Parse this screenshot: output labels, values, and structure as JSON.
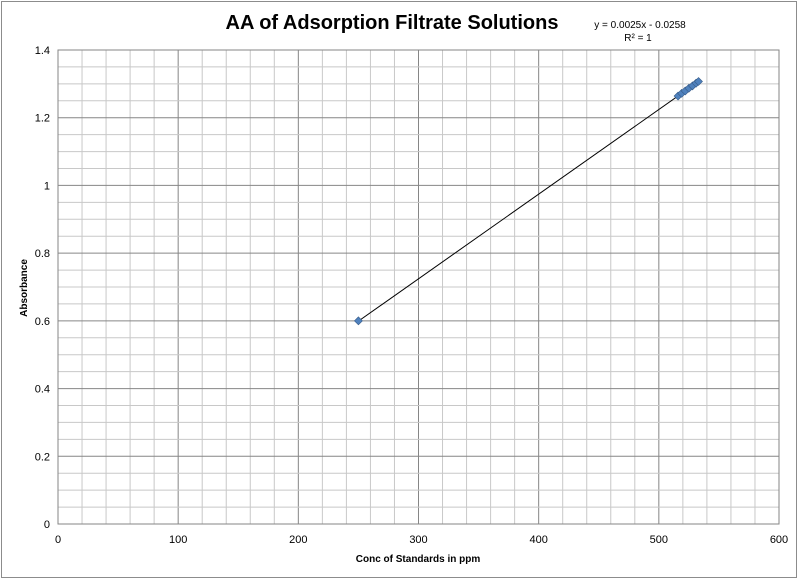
{
  "chart_data": {
    "type": "scatter",
    "title": "AA of Adsorption Filtrate Solutions",
    "xlabel": "Conc of Standards  in ppm",
    "ylabel": "Absorbance",
    "xlim": [
      0,
      600
    ],
    "ylim": [
      0,
      1.4
    ],
    "x_ticks": [
      "0",
      "100",
      "200",
      "300",
      "400",
      "500",
      "600"
    ],
    "y_ticks": [
      "0",
      "0.2",
      "0.4",
      "0.6",
      "0.8",
      "1",
      "1.2",
      "1.4"
    ],
    "grid": true,
    "series": [
      {
        "color": "#4f81bd",
        "marker": "diamond",
        "points": [
          {
            "x": 250,
            "y": 0.6
          },
          {
            "x": 516,
            "y": 1.264
          },
          {
            "x": 519,
            "y": 1.272
          },
          {
            "x": 522,
            "y": 1.279
          },
          {
            "x": 525,
            "y": 1.287
          },
          {
            "x": 528,
            "y": 1.294
          },
          {
            "x": 531,
            "y": 1.302
          },
          {
            "x": 533,
            "y": 1.307
          }
        ]
      }
    ],
    "trendline": {
      "type": "linear",
      "color": "#000000",
      "x_range": [
        250,
        533
      ],
      "slope": 0.0025,
      "intercept": -0.0258,
      "equation": "y = 0.0025x - 0.0258",
      "r2_label": "R² = 1"
    }
  }
}
